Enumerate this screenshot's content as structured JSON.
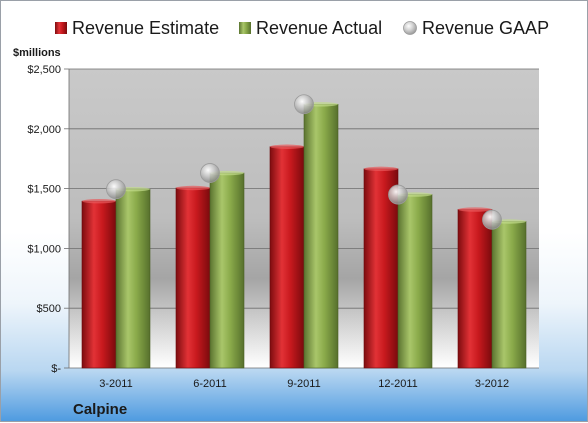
{
  "company": "Calpine",
  "colors": {
    "estimate": "#c8191e",
    "actual": "#8aaa4a",
    "gaap": "#b9b9b9"
  },
  "chart_data": {
    "type": "bar",
    "ylabel": "$millions",
    "ylim": [
      0,
      2500
    ],
    "yticks": [
      0,
      500,
      1000,
      1500,
      2000,
      2500
    ],
    "ytick_labels": [
      "$-",
      "$500",
      "$1,000",
      "$1,500",
      "$2,000",
      "$2,500"
    ],
    "categories": [
      "3-2011",
      "6-2011",
      "9-2011",
      "12-2011",
      "3-2012"
    ],
    "legend_position": "top",
    "grid": true,
    "series": [
      {
        "name": "Revenue Estimate",
        "type": "bar",
        "values": [
          1395,
          1505,
          1850,
          1665,
          1325
        ]
      },
      {
        "name": "Revenue Actual",
        "type": "bar",
        "values": [
          1495,
          1630,
          2205,
          1450,
          1225
        ]
      },
      {
        "name": "Revenue GAAP",
        "type": "scatter",
        "values": [
          1495,
          1630,
          2205,
          1450,
          1240
        ]
      }
    ]
  }
}
